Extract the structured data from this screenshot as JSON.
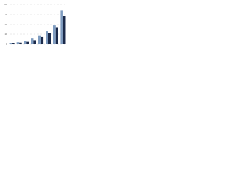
{
  "chart_data": {
    "type": "bar",
    "categories": [
      null,
      null,
      null,
      null,
      null,
      null,
      null,
      null
    ],
    "series": [
      {
        "color": "#7f9cc0",
        "values": [
          3,
          5,
          8,
          14,
          22,
          32,
          48,
          85
        ]
      },
      {
        "color": "#1b2a4a",
        "values": [
          2,
          4,
          6,
          10,
          18,
          28,
          42,
          70
        ]
      }
    ],
    "ylim": [
      0,
      100
    ],
    "yticks": [
      0,
      25,
      50,
      75,
      100
    ],
    "grid": true
  }
}
